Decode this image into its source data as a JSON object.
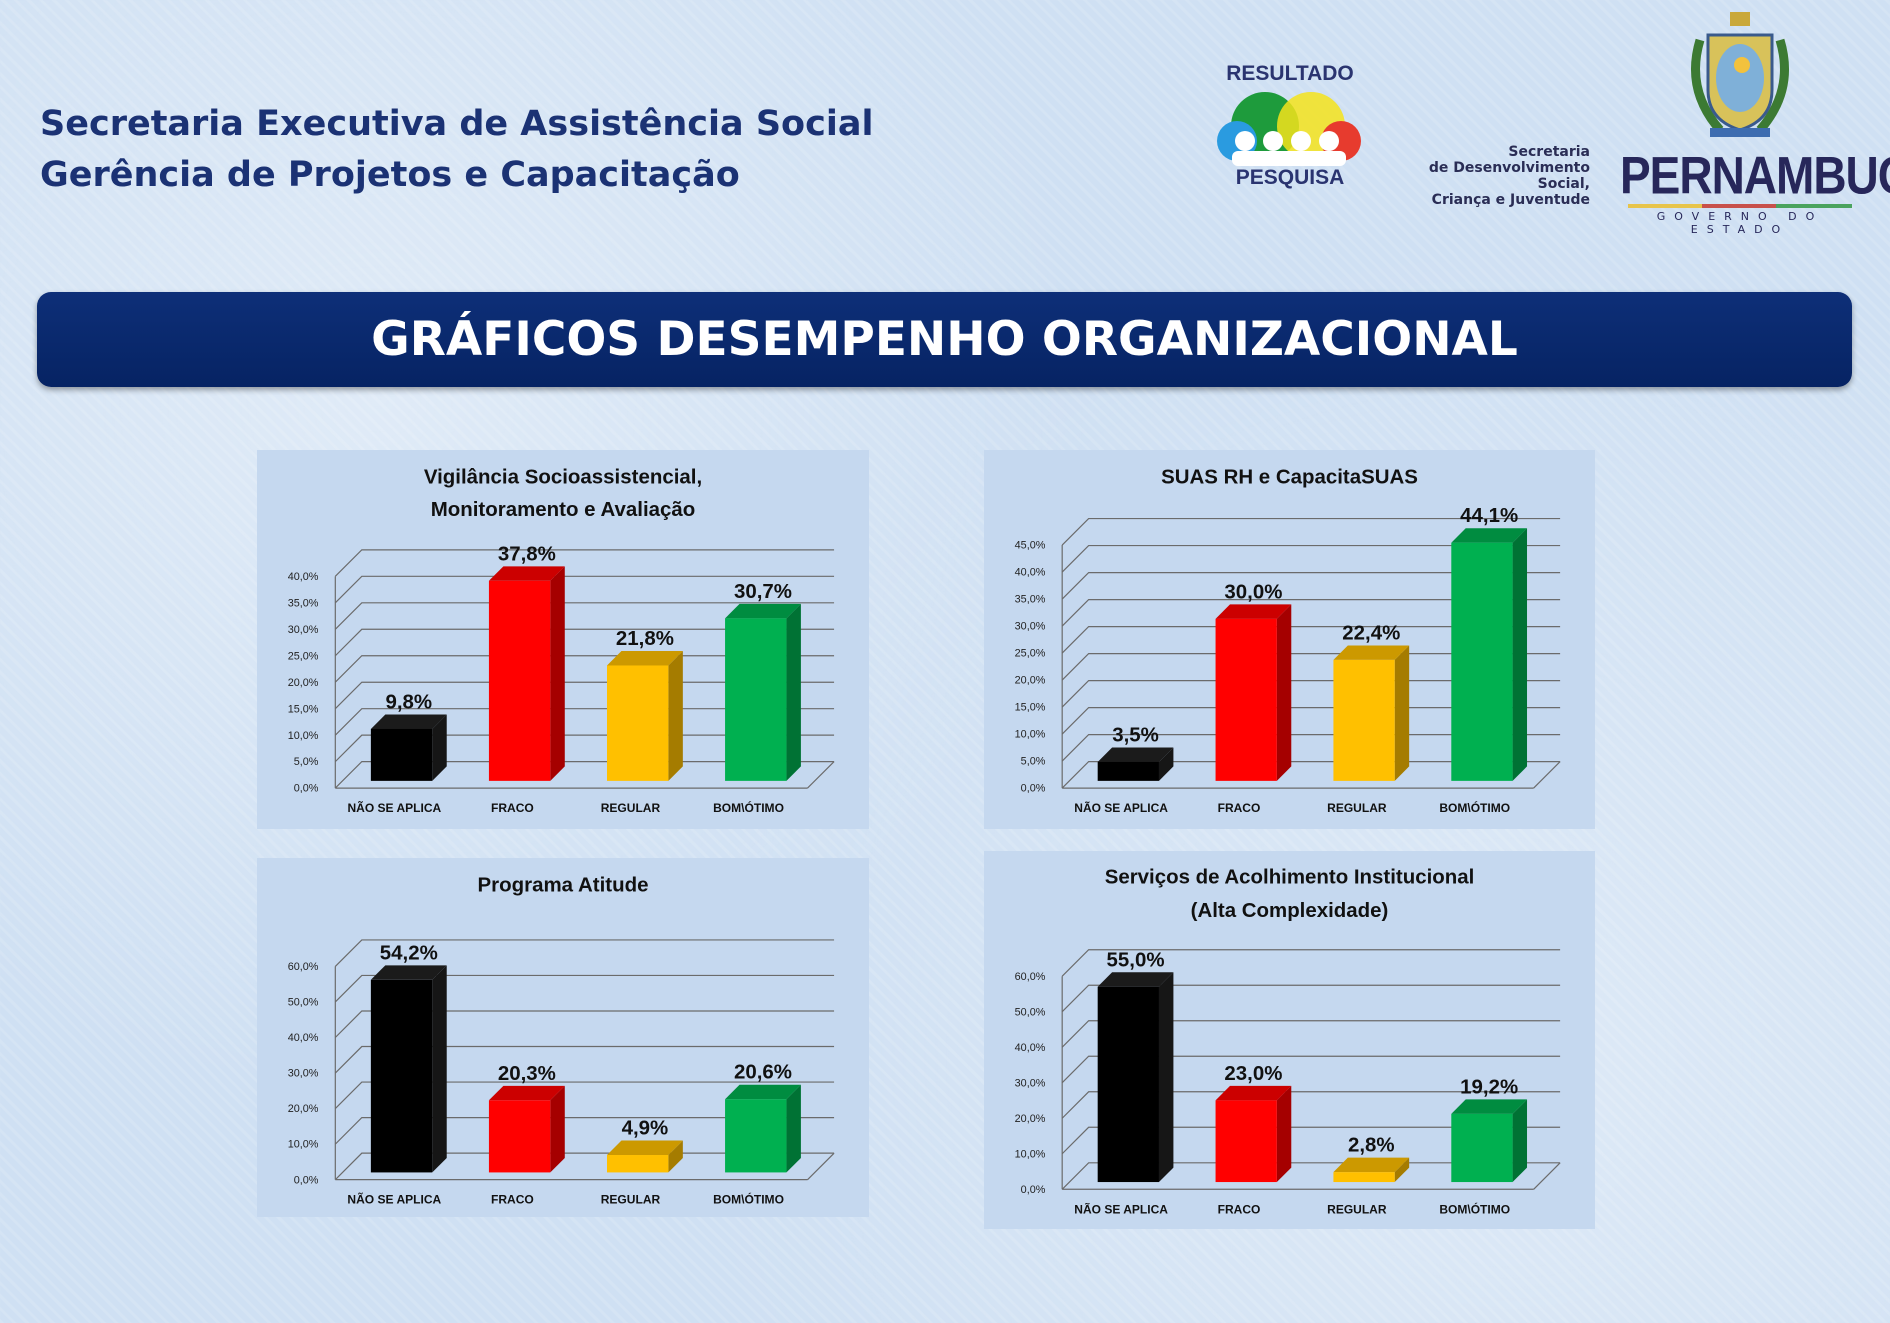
{
  "header": {
    "line1": "Secretaria Executiva de Assistência Social",
    "line2": "Gerência de Projetos e Capacitação"
  },
  "logos": {
    "resultado_top": "RESULTADO",
    "resultado_bottom": "PESQUISA",
    "secretaria": [
      "Secretaria",
      "de Desenvolvimento Social,",
      "Criança e Juventude"
    ],
    "pernambuco": "PERNAMBUCO",
    "governo": "GOVERNO DO ESTADO"
  },
  "banner": {
    "title": "GRÁFICOS DESEMPENHO ORGANIZACIONAL"
  },
  "colors": [
    "#000000",
    "#ff0000",
    "#ffc000",
    "#00b050"
  ],
  "chart_data": [
    {
      "type": "bar",
      "title": [
        "Vigilância Socioassistencial,",
        "Monitoramento e Avaliação"
      ],
      "categories": [
        "NÃO SE APLICA",
        "FRACO",
        "REGULAR",
        "BOM\\ÓTIMO"
      ],
      "values": [
        9.8,
        37.8,
        21.8,
        30.7
      ],
      "labels": [
        "9,8%",
        "37,8%",
        "21,8%",
        "30,7%"
      ],
      "ylim": [
        0,
        40
      ],
      "ystep": 5,
      "yticks": [
        "0,0%",
        "5,0%",
        "10,0%",
        "15,0%",
        "20,0%",
        "25,0%",
        "30,0%",
        "35,0%",
        "40,0%"
      ]
    },
    {
      "type": "bar",
      "title": [
        "SUAS RH e CapacitaSUAS"
      ],
      "categories": [
        "NÃO SE APLICA",
        "FRACO",
        "REGULAR",
        "BOM\\ÓTIMO"
      ],
      "values": [
        3.5,
        30.0,
        22.4,
        44.1
      ],
      "labels": [
        "3,5%",
        "30,0%",
        "22,4%",
        "44,1%"
      ],
      "ylim": [
        0,
        45
      ],
      "ystep": 5,
      "yticks": [
        "0,0%",
        "5,0%",
        "10,0%",
        "15,0%",
        "20,0%",
        "25,0%",
        "30,0%",
        "35,0%",
        "40,0%",
        "45,0%"
      ]
    },
    {
      "type": "bar",
      "title": [
        "Programa Atitude"
      ],
      "categories": [
        "NÃO SE APLICA",
        "FRACO",
        "REGULAR",
        "BOM\\ÓTIMO"
      ],
      "values": [
        54.2,
        20.3,
        4.9,
        20.6
      ],
      "labels": [
        "54,2%",
        "20,3%",
        "4,9%",
        "20,6%"
      ],
      "ylim": [
        0,
        60
      ],
      "ystep": 10,
      "yticks": [
        "0,0%",
        "10,0%",
        "20,0%",
        "30,0%",
        "40,0%",
        "50,0%",
        "60,0%"
      ]
    },
    {
      "type": "bar",
      "title": [
        "Serviços de Acolhimento Institucional",
        "(Alta Complexidade)"
      ],
      "categories": [
        "NÃO SE APLICA",
        "FRACO",
        "REGULAR",
        "BOM\\ÓTIMO"
      ],
      "values": [
        55.0,
        23.0,
        2.8,
        19.2
      ],
      "labels": [
        "55,0%",
        "23,0%",
        "2,8%",
        "19,2%"
      ],
      "ylim": [
        0,
        60
      ],
      "ystep": 10,
      "yticks": [
        "0,0%",
        "10,0%",
        "20,0%",
        "30,0%",
        "40,0%",
        "50,0%",
        "60,0%"
      ]
    }
  ]
}
